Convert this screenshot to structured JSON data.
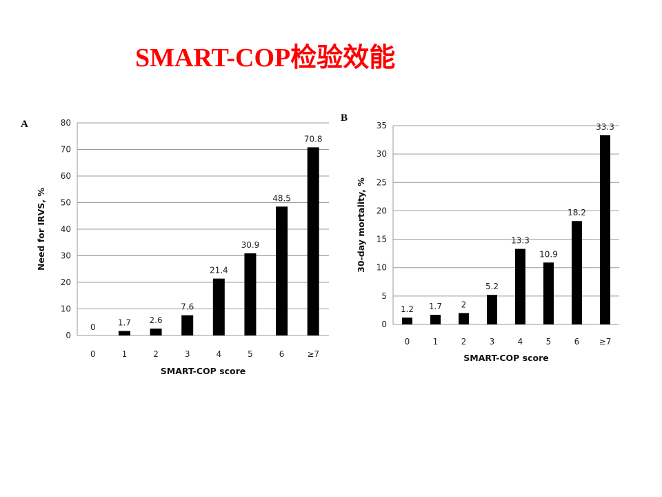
{
  "slide": {
    "title": "SMART-COP检验效能"
  },
  "chart_data": [
    {
      "type": "bar",
      "panel": "A",
      "categories": [
        "0",
        "1",
        "2",
        "3",
        "4",
        "5",
        "6",
        "≥7"
      ],
      "values": [
        0,
        1.7,
        2.6,
        7.6,
        21.4,
        30.9,
        48.5,
        70.8
      ],
      "data_labels": [
        "0",
        "1.7",
        "2.6",
        "7.6",
        "21.4",
        "30.9",
        "48.5",
        "70.8"
      ],
      "xlabel": "SMART-COP score",
      "ylabel": "Need for IRVS, %",
      "ylim": [
        0,
        80
      ],
      "yticks": [
        0,
        10,
        20,
        30,
        40,
        50,
        60,
        70,
        80
      ],
      "grid": true,
      "bar_color": "#000000"
    },
    {
      "type": "bar",
      "panel": "B",
      "categories": [
        "0",
        "1",
        "2",
        "3",
        "4",
        "5",
        "6",
        "≥7"
      ],
      "values": [
        1.2,
        1.7,
        2,
        5.2,
        13.3,
        10.9,
        18.2,
        33.3
      ],
      "data_labels": [
        "1.2",
        "1.7",
        "2",
        "5.2",
        "13.3",
        "10.9",
        "18.2",
        "33.3"
      ],
      "xlabel": "SMART-COP score",
      "ylabel": "30-day mortality, %",
      "ylim": [
        0,
        35
      ],
      "yticks": [
        0,
        5,
        10,
        15,
        20,
        25,
        30,
        35
      ],
      "grid": true,
      "bar_color": "#000000"
    }
  ]
}
